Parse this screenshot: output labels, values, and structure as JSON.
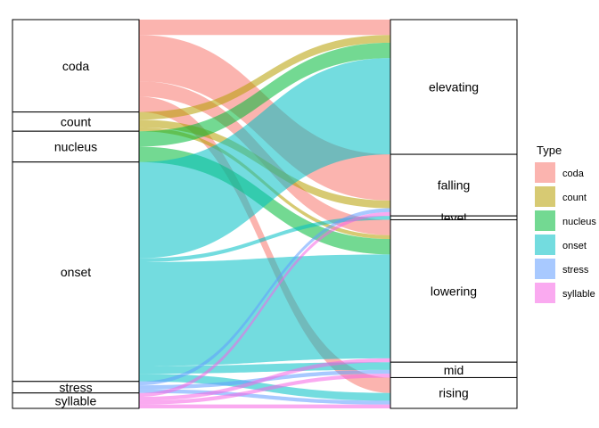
{
  "chart_data": {
    "type": "alluvial",
    "title": "",
    "xlabel": "",
    "ylabel": "",
    "grid": false,
    "legend": {
      "title": "Type",
      "placement": "right",
      "entries": [
        {
          "name": "coda",
          "color": "#F8766D"
        },
        {
          "name": "count",
          "color": "#B79F00"
        },
        {
          "name": "nucleus",
          "color": "#00BA38"
        },
        {
          "name": "onset",
          "color": "#00BFC4"
        },
        {
          "name": "stress",
          "color": "#619CFF"
        },
        {
          "name": "syllable",
          "color": "#F564E3"
        }
      ]
    },
    "left_axis": {
      "categories": [
        "coda",
        "count",
        "nucleus",
        "onset",
        "stress",
        "syllable"
      ]
    },
    "right_axis": {
      "categories": [
        "elevating",
        "falling",
        "level",
        "lowering",
        "mid",
        "rising"
      ]
    },
    "flows": [
      {
        "type": "coda",
        "from": "coda",
        "to": "elevating",
        "value": 4
      },
      {
        "type": "coda",
        "from": "coda",
        "to": "falling",
        "value": 12
      },
      {
        "type": "coda",
        "from": "coda",
        "to": "lowering",
        "value": 4
      },
      {
        "type": "coda",
        "from": "coda",
        "to": "rising",
        "value": 4
      },
      {
        "type": "count",
        "from": "count",
        "to": "elevating",
        "value": 2
      },
      {
        "type": "count",
        "from": "count",
        "to": "falling",
        "value": 2
      },
      {
        "type": "count",
        "from": "count",
        "to": "lowering",
        "value": 1
      },
      {
        "type": "nucleus",
        "from": "nucleus",
        "to": "elevating",
        "value": 4
      },
      {
        "type": "nucleus",
        "from": "nucleus",
        "to": "lowering",
        "value": 4
      },
      {
        "type": "onset",
        "from": "onset",
        "to": "elevating",
        "value": 25
      },
      {
        "type": "onset",
        "from": "onset",
        "to": "level",
        "value": 1
      },
      {
        "type": "onset",
        "from": "onset",
        "to": "lowering",
        "value": 27
      },
      {
        "type": "onset",
        "from": "onset",
        "to": "mid",
        "value": 2
      },
      {
        "type": "onset",
        "from": "onset",
        "to": "rising",
        "value": 2
      },
      {
        "type": "stress",
        "from": "stress",
        "to": "falling",
        "value": 1
      },
      {
        "type": "stress",
        "from": "stress",
        "to": "mid",
        "value": 1
      },
      {
        "type": "stress",
        "from": "stress",
        "to": "rising",
        "value": 1
      },
      {
        "type": "syllable",
        "from": "syllable",
        "to": "falling",
        "value": 1
      },
      {
        "type": "syllable",
        "from": "syllable",
        "to": "lowering",
        "value": 1
      },
      {
        "type": "syllable",
        "from": "syllable",
        "to": "mid",
        "value": 1
      },
      {
        "type": "syllable",
        "from": "syllable",
        "to": "rising",
        "value": 1
      }
    ]
  }
}
